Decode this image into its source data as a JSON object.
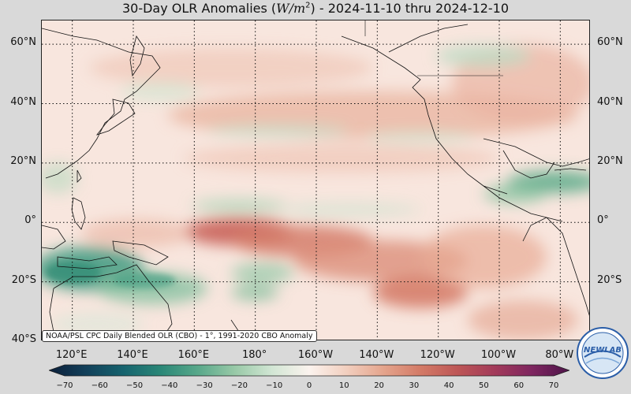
{
  "title": {
    "prefix": "30-Day OLR Anomalies (",
    "unit_base": "W/m",
    "unit_exp": "2",
    "suffix": ") - 2024-11-10 thru 2024-12-10"
  },
  "map": {
    "lon_range": [
      110,
      290
    ],
    "lat_range": [
      -40,
      68
    ],
    "lat_labels": [
      "60°N",
      "40°N",
      "20°N",
      "0°",
      "20°S",
      "40°S"
    ],
    "lat_values": [
      60,
      40,
      20,
      0,
      -20,
      -40
    ],
    "lon_labels": [
      "120°E",
      "140°E",
      "160°E",
      "180°",
      "160°W",
      "140°W",
      "120°W",
      "100°W",
      "80°W"
    ],
    "lon_values": [
      120,
      140,
      160,
      180,
      200,
      220,
      240,
      260,
      280
    ],
    "gridlines": "dotted"
  },
  "source_note": "NOAA/PSL CPC Daily Blended OLR (CBO) - 1°, 1991-2020 CBO Anomaly",
  "colorbar": {
    "ticks": [
      "−70",
      "−60",
      "−50",
      "−40",
      "−30",
      "−20",
      "−10",
      "0",
      "10",
      "20",
      "30",
      "40",
      "50",
      "60",
      "70"
    ],
    "values": [
      -70,
      -60,
      -50,
      -40,
      -30,
      -20,
      -10,
      0,
      10,
      20,
      30,
      40,
      50,
      60,
      70
    ],
    "colors_negative": [
      "#0b1f3a",
      "#12405a",
      "#16636e",
      "#2a8777",
      "#58a88a",
      "#98c9a7",
      "#d2e6d4"
    ],
    "color_zero": "#fbf3ee",
    "colors_positive": [
      "#f2cfbf",
      "#e4a48c",
      "#d37a66",
      "#bd5656",
      "#a23a5a",
      "#7e2660",
      "#4d1449"
    ]
  },
  "logo": {
    "text": "NEWLAB",
    "icon": "noaa-psl-logo-icon"
  }
}
